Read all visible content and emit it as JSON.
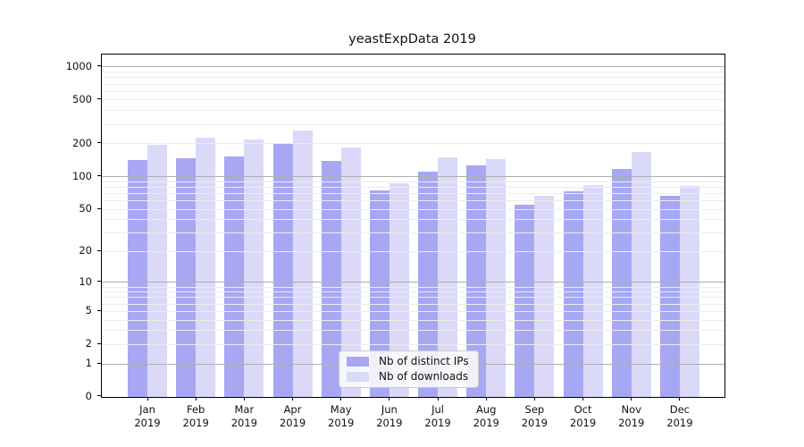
{
  "title": "yeastExpData 2019",
  "y_axis": {
    "tick_labels": [
      "0",
      "1",
      "2",
      "5",
      "10",
      "20",
      "50",
      "100",
      "200",
      "500",
      "1000"
    ]
  },
  "x_axis": {
    "year": "2019",
    "months": [
      "Jan",
      "Feb",
      "Mar",
      "Apr",
      "May",
      "Jun",
      "Jul",
      "Aug",
      "Sep",
      "Oct",
      "Nov",
      "Dec"
    ]
  },
  "chart_data": {
    "type": "bar",
    "title": "yeastExpData 2019",
    "categories": [
      "Jan 2019",
      "Feb 2019",
      "Mar 2019",
      "Apr 2019",
      "May 2019",
      "Jun 2019",
      "Jul 2019",
      "Aug 2019",
      "Sep 2019",
      "Oct 2019",
      "Nov 2019",
      "Dec 2019"
    ],
    "series": [
      {
        "name": "Nb of distinct IPs",
        "color": "#a7a7f4",
        "values": [
          142,
          148,
          153,
          198,
          140,
          75,
          111,
          126,
          55,
          73,
          117,
          66
        ]
      },
      {
        "name": "Nb of downloads",
        "color": "#dadaf8",
        "values": [
          196,
          228,
          218,
          265,
          184,
          87,
          150,
          145,
          67,
          83,
          169,
          82
        ]
      }
    ],
    "xlabel": "",
    "ylabel": "",
    "y_scale": "log1p (position proportional to log10(1+value))",
    "y_ticks": [
      0,
      1,
      2,
      5,
      10,
      20,
      50,
      100,
      200,
      500,
      1000
    ],
    "y_minor_gridlines": [
      2,
      3,
      4,
      5,
      6,
      7,
      8,
      9,
      20,
      30,
      40,
      50,
      60,
      70,
      80,
      90,
      200,
      300,
      400,
      500,
      600,
      700,
      800,
      900
    ],
    "y_major_gridlines": [
      1,
      10,
      100,
      1000
    ],
    "ylim": [
      0,
      1300
    ],
    "grid": "horizontal gridlines drawn over bars",
    "legend_position": "lower center"
  },
  "colors": {
    "background": "#ffffff",
    "spine": "#000000",
    "minor_grid": "#ececec",
    "major_grid": "#aeaeae",
    "bar_distinct_ips": "#a7a7f4",
    "bar_downloads": "#dadaf8"
  }
}
